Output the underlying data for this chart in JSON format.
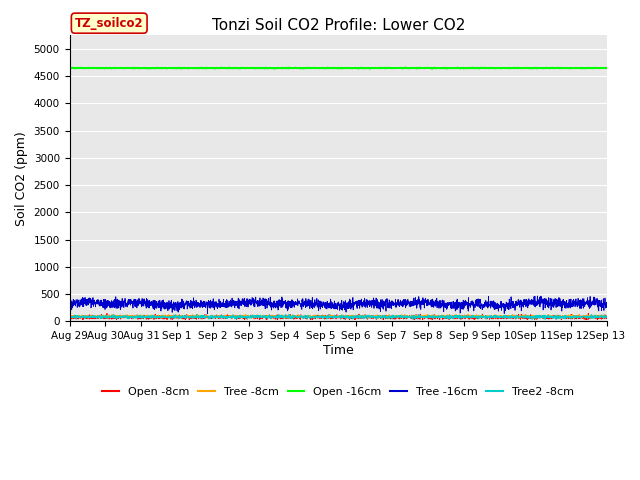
{
  "title": "Tonzi Soil CO2 Profile: Lower CO2",
  "ylabel": "Soil CO2 (ppm)",
  "xlabel": "Time",
  "ylim": [
    0,
    5250
  ],
  "yticks": [
    0,
    500,
    1000,
    1500,
    2000,
    2500,
    3000,
    3500,
    4000,
    4500,
    5000
  ],
  "n_points": 3000,
  "series": {
    "open_8cm": {
      "color": "#ff0000",
      "mean": 75,
      "std": 18,
      "label": "Open -8cm"
    },
    "tree_8cm": {
      "color": "#ffa500",
      "mean": 90,
      "std": 12,
      "label": "Tree -8cm"
    },
    "open_16cm": {
      "color": "#00ff00",
      "mean": 4650,
      "std": 4,
      "label": "Open -16cm"
    },
    "tree_16cm": {
      "color": "#0000cc",
      "mean": 320,
      "std": 45,
      "label": "Tree -16cm"
    },
    "tree2_8cm": {
      "color": "#00cccc",
      "mean": 80,
      "std": 14,
      "label": "Tree2 -8cm"
    }
  },
  "xtick_labels": [
    "Aug 29",
    "Aug 30",
    "Aug 31",
    "Sep 1",
    "Sep 2",
    "Sep 3",
    "Sep 4",
    "Sep 5",
    "Sep 6",
    "Sep 7",
    "Sep 8",
    "Sep 9",
    "Sep 10",
    "Sep 11",
    "Sep 12",
    "Sep 13"
  ],
  "annotation_text": "TZ_soilco2",
  "annotation_bg": "#ffffcc",
  "annotation_border": "#cc0000",
  "background_color": "#e8e8e8",
  "fig_width": 6.4,
  "fig_height": 4.8,
  "dpi": 100,
  "title_fontsize": 11,
  "axis_fontsize": 9,
  "tick_fontsize": 7.5,
  "legend_fontsize": 8,
  "annot_fontsize": 8.5
}
